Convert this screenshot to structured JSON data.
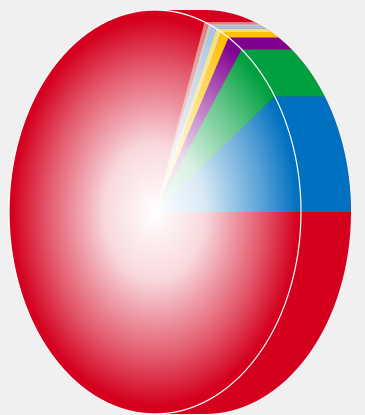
{
  "chart_data": {
    "type": "pie",
    "style": "3d-tilted",
    "title": "",
    "legend": "none",
    "series": [
      {
        "values": [
          80.5,
          9.7,
          5.2,
          1.7,
          0.9,
          0.6,
          0.5,
          0.4,
          0.5
        ]
      }
    ],
    "colors": [
      "#d4001e",
      "#0070c0",
      "#00a040",
      "#800090",
      "#ffc000",
      "#f0e080",
      "#a0c8f0",
      "#c8c8c8",
      "#e08080"
    ]
  }
}
